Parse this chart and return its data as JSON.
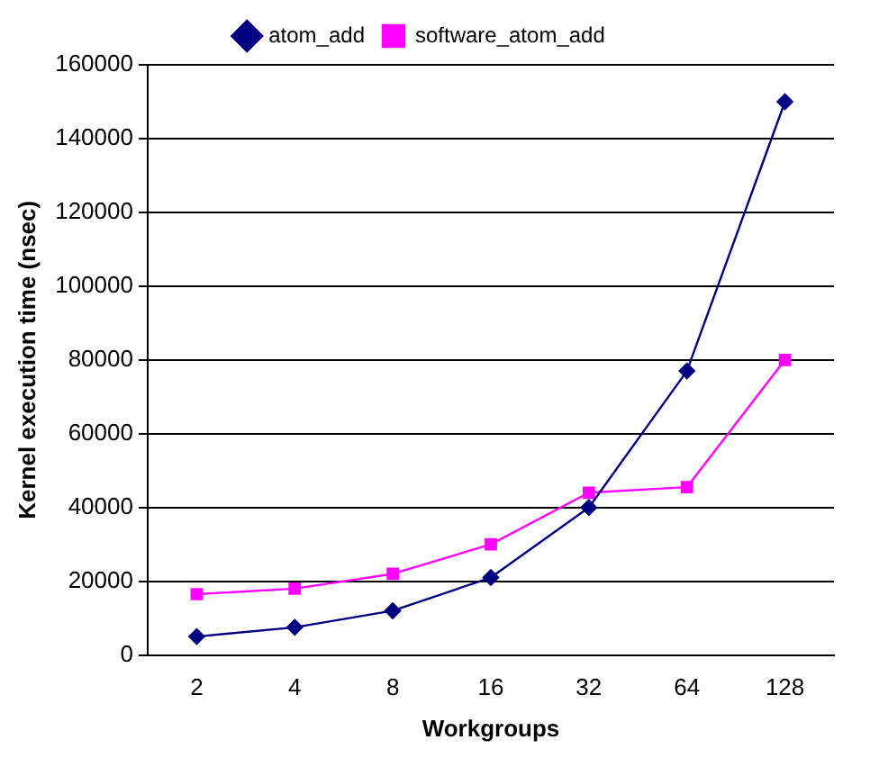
{
  "chart_data": {
    "type": "line",
    "xlabel": "Workgroups",
    "ylabel": "Kernel execution time (nsec)",
    "categories": [
      "2",
      "4",
      "8",
      "16",
      "32",
      "64",
      "128"
    ],
    "series": [
      {
        "name": "atom_add",
        "color": "#000080",
        "marker": "diamond",
        "values": [
          5000,
          7500,
          12000,
          21000,
          40000,
          77000,
          150000
        ]
      },
      {
        "name": "software_atom_add",
        "color": "#ff00ff",
        "marker": "square",
        "values": [
          16500,
          18000,
          22000,
          30000,
          44000,
          45500,
          80000
        ]
      }
    ],
    "ylim": [
      0,
      160000
    ],
    "yticks": [
      0,
      20000,
      40000,
      60000,
      80000,
      100000,
      120000,
      140000,
      160000
    ],
    "grid": "y",
    "legend": "top"
  }
}
